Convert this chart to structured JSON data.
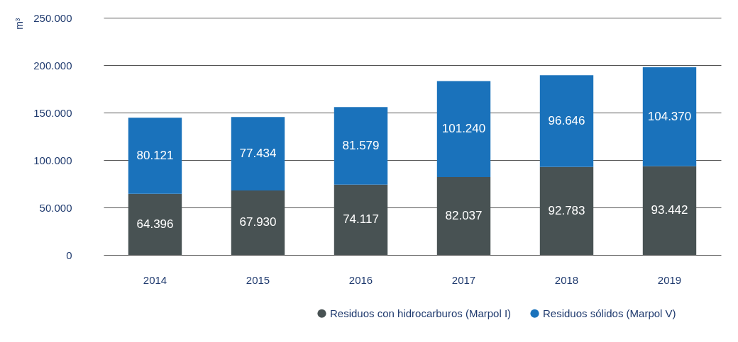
{
  "chart_data": {
    "type": "bar",
    "stacked": true,
    "ylabel": "m³",
    "categories": [
      "2014",
      "2015",
      "2016",
      "2017",
      "2018",
      "2019"
    ],
    "series": [
      {
        "name": "Residuos con hidrocarburos (Marpol I)",
        "color": "#485253",
        "values": [
          64396,
          67930,
          74117,
          82037,
          92783,
          93442
        ],
        "value_labels": [
          "64.396",
          "67.930",
          "74.117",
          "82.037",
          "92.783",
          "93.442"
        ]
      },
      {
        "name": "Residuos sólidos (Marpol V)",
        "color": "#1a72bb",
        "values": [
          80121,
          77434,
          81579,
          101240,
          96646,
          104370
        ],
        "value_labels": [
          "80.121",
          "77.434",
          "81.579",
          "101.240",
          "96.646",
          "104.370"
        ]
      }
    ],
    "ylim": [
      0,
      250000
    ],
    "yticks": [
      0,
      {
        "value": 50000,
        "label": "50.000"
      },
      {
        "value": 100000,
        "label": "100.000"
      },
      {
        "value": 150000,
        "label": "150.000"
      },
      {
        "value": 200000,
        "label": "200.000"
      },
      {
        "value": 250000,
        "label": "250.000"
      }
    ],
    "grid": "y",
    "legend": "bottom right"
  }
}
